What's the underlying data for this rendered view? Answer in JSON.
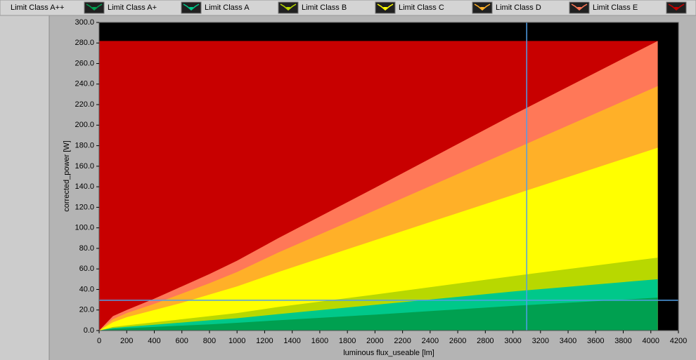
{
  "chart_data": {
    "type": "area",
    "x_label": "luminous flux_useable [lm]",
    "y_label": "corrected_power [W]",
    "x": [
      0,
      100,
      200,
      400,
      600,
      800,
      1000,
      1300,
      2000,
      3000,
      4050
    ],
    "series": [
      {
        "name": "Limit Class E",
        "color": "#c80000",
        "values": [
          282,
          282,
          282,
          282,
          282,
          282,
          282,
          282,
          282,
          282,
          282
        ]
      },
      {
        "name": "Limit Class D",
        "color": "#ff7858",
        "values": [
          0,
          14,
          20,
          31,
          43,
          55,
          68,
          90,
          139,
          210,
          282
        ]
      },
      {
        "name": "Limit Class C",
        "color": "#ffb028",
        "values": [
          0,
          11,
          17,
          26,
          36,
          46,
          57,
          76,
          117,
          176,
          238
        ]
      },
      {
        "name": "Limit Class B",
        "color": "#ffff00",
        "values": [
          0,
          8,
          13,
          20,
          27,
          35,
          43,
          57,
          88,
          132,
          178
        ]
      },
      {
        "name": "Limit Class A",
        "color": "#b8d800",
        "values": [
          0,
          3.5,
          5,
          8,
          11,
          14,
          17,
          23,
          35,
          53,
          71
        ]
      },
      {
        "name": "Limit Class A+",
        "color": "#00c88a",
        "values": [
          0,
          2.5,
          3.6,
          5.6,
          7.8,
          10,
          12,
          16,
          25,
          38,
          50
        ]
      },
      {
        "name": "Limit Class A++",
        "color": "#00a050",
        "values": [
          0,
          1.6,
          2.3,
          3.5,
          4.8,
          6,
          7.5,
          10,
          15.5,
          24,
          32
        ]
      }
    ],
    "legend_order": [
      6,
      5,
      4,
      3,
      2,
      1,
      0
    ],
    "cursor_x": 3100,
    "cursor_y": 29.5,
    "cursor_color": "#4f9fe8",
    "plot_background": "#000000",
    "xlim": [
      0,
      4200
    ],
    "xticks": [
      0,
      200,
      400,
      600,
      800,
      1000,
      1200,
      1400,
      1600,
      1800,
      2000,
      2200,
      2400,
      2600,
      2800,
      3000,
      3200,
      3400,
      3600,
      3800,
      4000,
      4200
    ],
    "ylim": [
      0,
      300
    ],
    "yticks": [
      {
        "value": 0,
        "label": "0.0"
      },
      {
        "value": 20,
        "label": "20.0"
      },
      {
        "value": 40,
        "label": "40.0"
      },
      {
        "value": 60,
        "label": "60.0"
      },
      {
        "value": 80,
        "label": "80.0"
      },
      {
        "value": 100,
        "label": "100.0"
      },
      {
        "value": 120,
        "label": "120.0"
      },
      {
        "value": 140,
        "label": "140.0"
      },
      {
        "value": 160,
        "label": "160.0"
      },
      {
        "value": 180,
        "label": "180.0"
      },
      {
        "value": 200,
        "label": "200.0"
      },
      {
        "value": 220,
        "label": "220.0"
      },
      {
        "value": 240,
        "label": "240.0"
      },
      {
        "value": 260,
        "label": "260.0"
      },
      {
        "value": 280,
        "label": "280.0"
      },
      {
        "value": 300,
        "label": "300.0"
      }
    ]
  }
}
